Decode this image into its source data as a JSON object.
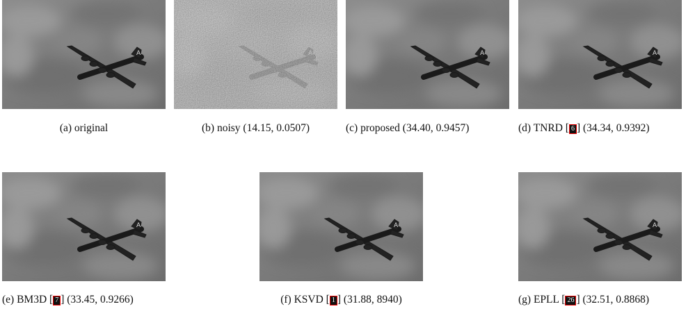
{
  "figure": {
    "panels": [
      {
        "label": "(a)",
        "name": "original"
      },
      {
        "label": "(b)",
        "name": "noisy",
        "metrics": "(14.15, 0.0507)"
      },
      {
        "label": "(c)",
        "name": "proposed",
        "metrics": "(34.40, 0.9457)"
      },
      {
        "label": "(d)",
        "name": "TNRD",
        "cite": "6",
        "metrics": "(34.34, 0.9392)"
      },
      {
        "label": "(e)",
        "name": "BM3D",
        "cite": "7",
        "metrics": "(33.45, 0.9266)"
      },
      {
        "label": "(f)",
        "name": "KSVD",
        "cite": "1",
        "metrics": "(31.88, 8940)"
      },
      {
        "label": "(g)",
        "name": "EPLL",
        "cite": "26",
        "metrics": "(32.51, 0.8868)"
      }
    ]
  }
}
